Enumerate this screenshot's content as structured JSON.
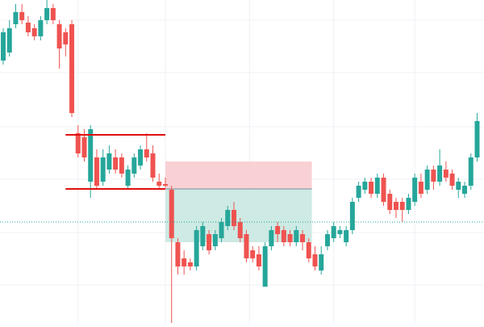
{
  "chart_data": {
    "type": "candlestick",
    "up_color": "#26a69a",
    "down_color": "#ef5350",
    "open": [
      325,
      335,
      370,
      385,
      372,
      365,
      355,
      375,
      390,
      370,
      360,
      370,
      235,
      230,
      175,
      205,
      175,
      190,
      205,
      205,
      170,
      185,
      195,
      215,
      210,
      175,
      172,
      165,
      100,
      80,
      75,
      70,
      95,
      110,
      95,
      105,
      120,
      140,
      125,
      110,
      90,
      85,
      45,
      95,
      120,
      115,
      110,
      100,
      110,
      100,
      85,
      65,
      95,
      105,
      110,
      100,
      115,
      155,
      165,
      175,
      160,
      180,
      160,
      150,
      150,
      140,
      150,
      175,
      165,
      190,
      175,
      190,
      185,
      165,
      160,
      170,
      205
    ],
    "high": [
      365,
      375,
      395,
      395,
      380,
      370,
      380,
      400,
      395,
      375,
      365,
      375,
      245,
      240,
      245,
      215,
      215,
      220,
      215,
      210,
      195,
      210,
      220,
      235,
      220,
      185,
      180,
      170,
      105,
      90,
      80,
      120,
      125,
      115,
      115,
      130,
      145,
      150,
      130,
      115,
      95,
      95,
      100,
      120,
      125,
      120,
      115,
      120,
      115,
      105,
      95,
      95,
      115,
      125,
      120,
      120,
      155,
      175,
      180,
      180,
      185,
      185,
      165,
      155,
      155,
      160,
      185,
      185,
      195,
      195,
      215,
      200,
      190,
      180,
      175,
      210,
      260
    ],
    "low": [
      320,
      330,
      365,
      370,
      355,
      350,
      350,
      370,
      370,
      315,
      330,
      255,
      205,
      200,
      155,
      165,
      170,
      185,
      185,
      180,
      165,
      180,
      190,
      200,
      175,
      165,
      168,
      0,
      60,
      60,
      65,
      65,
      90,
      85,
      90,
      100,
      115,
      115,
      100,
      75,
      75,
      65,
      45,
      90,
      100,
      95,
      95,
      95,
      90,
      75,
      65,
      60,
      90,
      100,
      105,
      95,
      110,
      150,
      160,
      155,
      155,
      145,
      135,
      130,
      125,
      135,
      145,
      155,
      160,
      165,
      170,
      175,
      165,
      155,
      155,
      165,
      200
    ],
    "close": [
      360,
      365,
      385,
      375,
      360,
      355,
      375,
      390,
      375,
      340,
      345,
      260,
      210,
      205,
      240,
      170,
      205,
      210,
      190,
      185,
      190,
      205,
      215,
      205,
      180,
      170,
      170,
      105,
      70,
      70,
      70,
      115,
      120,
      90,
      110,
      125,
      140,
      120,
      105,
      80,
      80,
      70,
      95,
      115,
      110,
      100,
      100,
      115,
      100,
      80,
      70,
      85,
      110,
      120,
      115,
      115,
      150,
      170,
      175,
      160,
      180,
      150,
      140,
      140,
      140,
      155,
      180,
      160,
      190,
      175,
      195,
      180,
      170,
      175,
      170,
      205,
      250
    ],
    "ylim": [
      0,
      400
    ],
    "yticks": [
      47,
      112,
      178,
      243,
      310,
      375
    ],
    "xticks": [
      12,
      26,
      39.5,
      53,
      66
    ],
    "grid": true,
    "levels": [
      {
        "value": 233,
        "color": "#e01010"
      },
      {
        "value": 166,
        "color": "#e01010"
      }
    ],
    "position": {
      "entry": 166,
      "stop": 200,
      "target": 100,
      "stop_color": "#f7c6ca",
      "target_color": "#c9e8e1",
      "entry_color": "#7a8b9a"
    },
    "price_line": {
      "value": 125,
      "color": "#26a69a"
    }
  }
}
